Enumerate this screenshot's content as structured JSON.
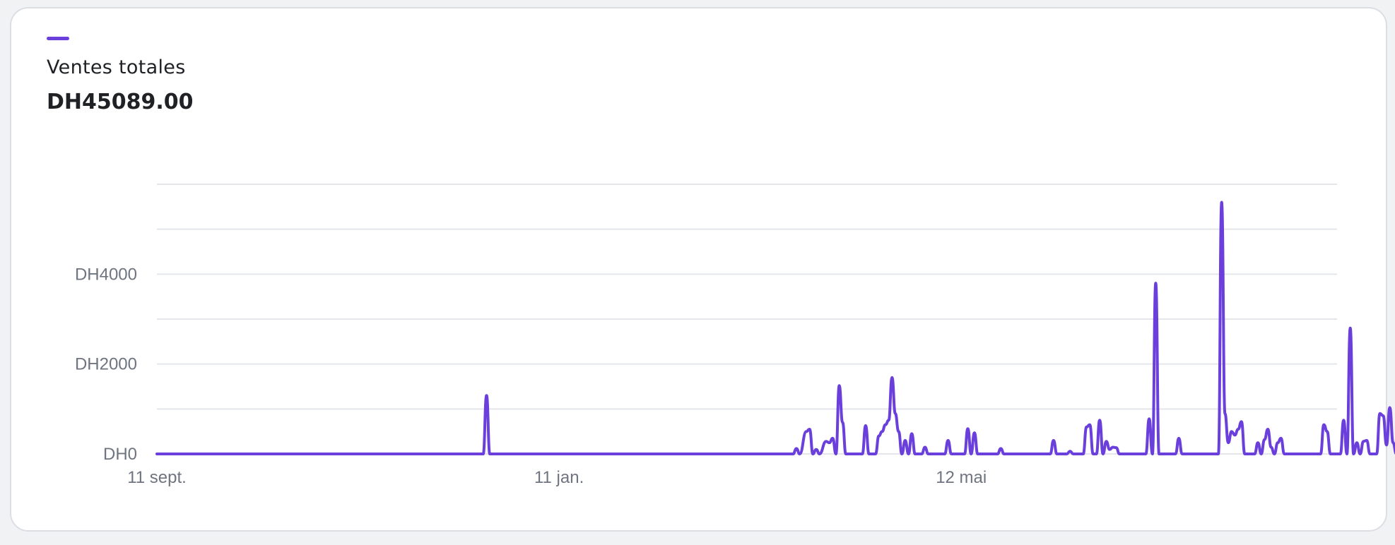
{
  "card": {
    "metric_label": "Ventes totales",
    "metric_value": "DH45089.00"
  },
  "colors": {
    "series": "#6a3fdc",
    "grid": "#e4e6ea",
    "axis_text": "#6e7480"
  },
  "chart_data": {
    "type": "line",
    "title": "",
    "xlabel": "",
    "ylabel": "",
    "ylim": [
      0,
      6000
    ],
    "y_ticks": [
      {
        "value": 0,
        "label": "DH0"
      },
      {
        "value": 2000,
        "label": "DH2000"
      },
      {
        "value": 4000,
        "label": "DH4000"
      }
    ],
    "y_gridlines": [
      0,
      1000,
      2000,
      3000,
      4000,
      5000,
      6000
    ],
    "x_start": "2023-09-11",
    "x_end": "2024-09-03",
    "x_ticks": [
      {
        "date": "2023-09-11",
        "label": "11 sept."
      },
      {
        "date": "2024-01-11",
        "label": "11 jan."
      },
      {
        "date": "2024-05-12",
        "label": "12 mai"
      }
    ],
    "legend": "top-left",
    "grid": true,
    "series": [
      {
        "name": "Ventes totales",
        "points": [
          [
            "2023-09-11",
            0
          ],
          [
            "2023-12-19",
            0
          ],
          [
            "2023-12-20",
            1300
          ],
          [
            "2023-12-21",
            0
          ],
          [
            "2024-03-22",
            0
          ],
          [
            "2024-03-23",
            120
          ],
          [
            "2024-03-24",
            0
          ],
          [
            "2024-03-26",
            500
          ],
          [
            "2024-03-27",
            550
          ],
          [
            "2024-03-28",
            0
          ],
          [
            "2024-03-29",
            100
          ],
          [
            "2024-03-30",
            0
          ],
          [
            "2024-04-01",
            280
          ],
          [
            "2024-04-02",
            250
          ],
          [
            "2024-04-03",
            350
          ],
          [
            "2024-04-04",
            0
          ],
          [
            "2024-04-05",
            1520
          ],
          [
            "2024-04-06",
            700
          ],
          [
            "2024-04-07",
            0
          ],
          [
            "2024-04-12",
            0
          ],
          [
            "2024-04-13",
            630
          ],
          [
            "2024-04-14",
            0
          ],
          [
            "2024-04-16",
            0
          ],
          [
            "2024-04-17",
            400
          ],
          [
            "2024-04-18",
            500
          ],
          [
            "2024-04-19",
            650
          ],
          [
            "2024-04-20",
            750
          ],
          [
            "2024-04-21",
            1700
          ],
          [
            "2024-04-22",
            900
          ],
          [
            "2024-04-23",
            500
          ],
          [
            "2024-04-24",
            0
          ],
          [
            "2024-04-25",
            300
          ],
          [
            "2024-04-26",
            0
          ],
          [
            "2024-04-27",
            450
          ],
          [
            "2024-04-28",
            0
          ],
          [
            "2024-04-30",
            0
          ],
          [
            "2024-05-01",
            150
          ],
          [
            "2024-05-02",
            0
          ],
          [
            "2024-05-07",
            0
          ],
          [
            "2024-05-08",
            300
          ],
          [
            "2024-05-09",
            0
          ],
          [
            "2024-05-13",
            0
          ],
          [
            "2024-05-14",
            560
          ],
          [
            "2024-05-15",
            0
          ],
          [
            "2024-05-16",
            470
          ],
          [
            "2024-05-17",
            0
          ],
          [
            "2024-05-23",
            0
          ],
          [
            "2024-05-24",
            120
          ],
          [
            "2024-05-25",
            0
          ],
          [
            "2024-06-08",
            0
          ],
          [
            "2024-06-09",
            300
          ],
          [
            "2024-06-10",
            0
          ],
          [
            "2024-06-13",
            0
          ],
          [
            "2024-06-14",
            60
          ],
          [
            "2024-06-15",
            0
          ],
          [
            "2024-06-18",
            0
          ],
          [
            "2024-06-19",
            600
          ],
          [
            "2024-06-20",
            650
          ],
          [
            "2024-06-21",
            0
          ],
          [
            "2024-06-22",
            0
          ],
          [
            "2024-06-23",
            750
          ],
          [
            "2024-06-24",
            0
          ],
          [
            "2024-06-25",
            280
          ],
          [
            "2024-06-26",
            100
          ],
          [
            "2024-06-27",
            150
          ],
          [
            "2024-06-28",
            140
          ],
          [
            "2024-06-29",
            0
          ],
          [
            "2024-07-07",
            0
          ],
          [
            "2024-07-08",
            780
          ],
          [
            "2024-07-09",
            0
          ],
          [
            "2024-07-10",
            3800
          ],
          [
            "2024-07-11",
            0
          ],
          [
            "2024-07-16",
            0
          ],
          [
            "2024-07-17",
            350
          ],
          [
            "2024-07-18",
            0
          ],
          [
            "2024-07-29",
            0
          ],
          [
            "2024-07-30",
            5600
          ],
          [
            "2024-07-31",
            900
          ],
          [
            "2024-08-01",
            250
          ],
          [
            "2024-08-02",
            500
          ],
          [
            "2024-08-03",
            420
          ],
          [
            "2024-08-04",
            550
          ],
          [
            "2024-08-05",
            720
          ],
          [
            "2024-08-06",
            0
          ],
          [
            "2024-08-09",
            0
          ],
          [
            "2024-08-10",
            250
          ],
          [
            "2024-08-11",
            0
          ],
          [
            "2024-08-12",
            320
          ],
          [
            "2024-08-13",
            550
          ],
          [
            "2024-08-14",
            150
          ],
          [
            "2024-08-15",
            0
          ],
          [
            "2024-08-16",
            250
          ],
          [
            "2024-08-17",
            350
          ],
          [
            "2024-08-18",
            0
          ],
          [
            "2024-08-29",
            0
          ],
          [
            "2024-08-30",
            650
          ],
          [
            "2024-08-31",
            500
          ],
          [
            "2024-09-01",
            0
          ],
          [
            "2024-09-04",
            0
          ],
          [
            "2024-09-05",
            750
          ],
          [
            "2024-09-06",
            0
          ],
          [
            "2024-09-07",
            2800
          ],
          [
            "2024-09-08",
            0
          ],
          [
            "2024-09-09",
            250
          ],
          [
            "2024-09-10",
            0
          ],
          [
            "2024-09-11",
            280
          ],
          [
            "2024-09-12",
            300
          ],
          [
            "2024-09-13",
            0
          ],
          [
            "2024-09-15",
            0
          ],
          [
            "2024-09-16",
            900
          ],
          [
            "2024-09-17",
            850
          ],
          [
            "2024-09-18",
            200
          ],
          [
            "2024-09-19",
            1030
          ],
          [
            "2024-09-20",
            250
          ],
          [
            "2024-09-21",
            0
          ]
        ]
      }
    ]
  }
}
